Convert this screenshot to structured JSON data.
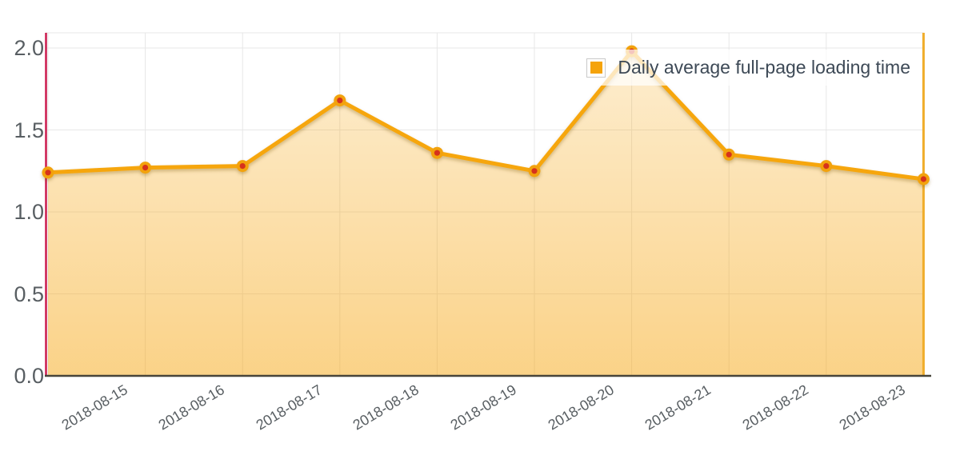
{
  "legend": {
    "label": "Daily average full-page loading time"
  },
  "chart_data": {
    "type": "area",
    "title": "",
    "xlabel": "",
    "ylabel": "",
    "series": [
      {
        "name": "Daily average full-page loading time",
        "values": [
          1.24,
          1.27,
          1.28,
          1.68,
          1.36,
          1.25,
          1.98,
          1.35,
          1.28,
          1.2
        ]
      }
    ],
    "categories": [
      "",
      "2018-08-15",
      "2018-08-16",
      "2018-08-17",
      "2018-08-18",
      "2018-08-19",
      "2018-08-20",
      "2018-08-21",
      "2018-08-22",
      "2018-08-23"
    ],
    "y_ticks": [
      "0.0",
      "0.5",
      "1.0",
      "1.5",
      "2.0"
    ],
    "ylim": [
      0,
      2.09
    ],
    "grid": true,
    "legend_position": "top-right",
    "x_label_rotation_deg": -31,
    "colors": {
      "line": "#f6a60d",
      "fill_top": "rgba(246,166,17,0.20)",
      "fill_bottom": "rgba(246,166,17,0.50)",
      "point_outer": "#f2a20d",
      "point_center": "#d6331f",
      "left_axis_line": "#cb1a4d",
      "right_edge_line": "#f0ad2b",
      "bottom_axis_line": "#47453a",
      "gridline": "#e7e7e7",
      "tick_text": "#585e62",
      "legend_text": "#3d4956",
      "legend_swatch": "#f5a30b"
    }
  }
}
